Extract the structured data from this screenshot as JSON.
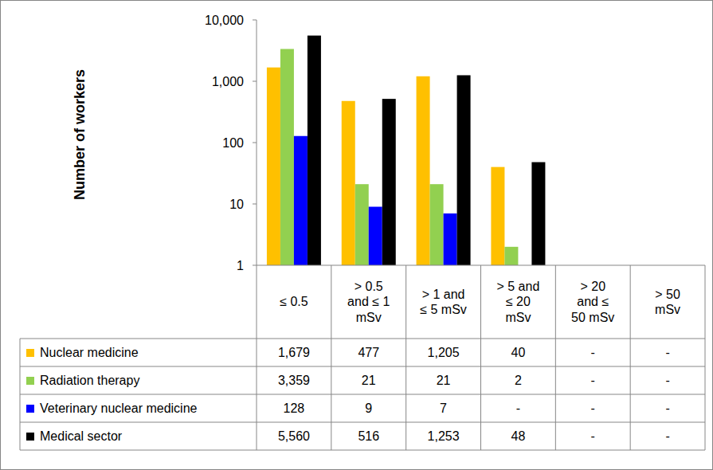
{
  "chart_data": {
    "type": "bar",
    "y_label": "Number of workers",
    "categories": [
      "≤ 0.5",
      "> 0.5 and ≤ 1 mSv",
      "> 1 and ≤ 5 mSv",
      "> 5 and ≤ 20 mSv",
      "> 20 and ≤ 50 mSv",
      "> 50 mSv"
    ],
    "series": [
      {
        "name": "Nuclear medicine",
        "color": "#FFC000",
        "values": [
          1679,
          477,
          1205,
          40,
          null,
          null
        ],
        "value_labels": [
          "1,679",
          "477",
          "1,205",
          "40",
          "-",
          "-"
        ]
      },
      {
        "name": "Radiation therapy",
        "color": "#92D050",
        "values": [
          3359,
          21,
          21,
          2,
          null,
          null
        ],
        "value_labels": [
          "3,359",
          "21",
          "21",
          "2",
          "-",
          "-"
        ]
      },
      {
        "name": "Veterinary nuclear medicine",
        "color": "#0000FF",
        "values": [
          128,
          9,
          7,
          null,
          null,
          null
        ],
        "value_labels": [
          "128",
          "9",
          "7",
          "-",
          "-",
          "-"
        ]
      },
      {
        "name": "Medical sector",
        "color": "#000000",
        "values": [
          5560,
          516,
          1253,
          48,
          null,
          null
        ],
        "value_labels": [
          "5,560",
          "516",
          "1,253",
          "48",
          "-",
          "-"
        ]
      }
    ],
    "ylim": [
      1,
      10000
    ],
    "yticks": [
      1,
      10,
      100,
      {
        "value": 1000,
        "label": "1,000"
      },
      {
        "value": 10000,
        "label": "10,000"
      }
    ],
    "log": "y",
    "grid": false
  }
}
